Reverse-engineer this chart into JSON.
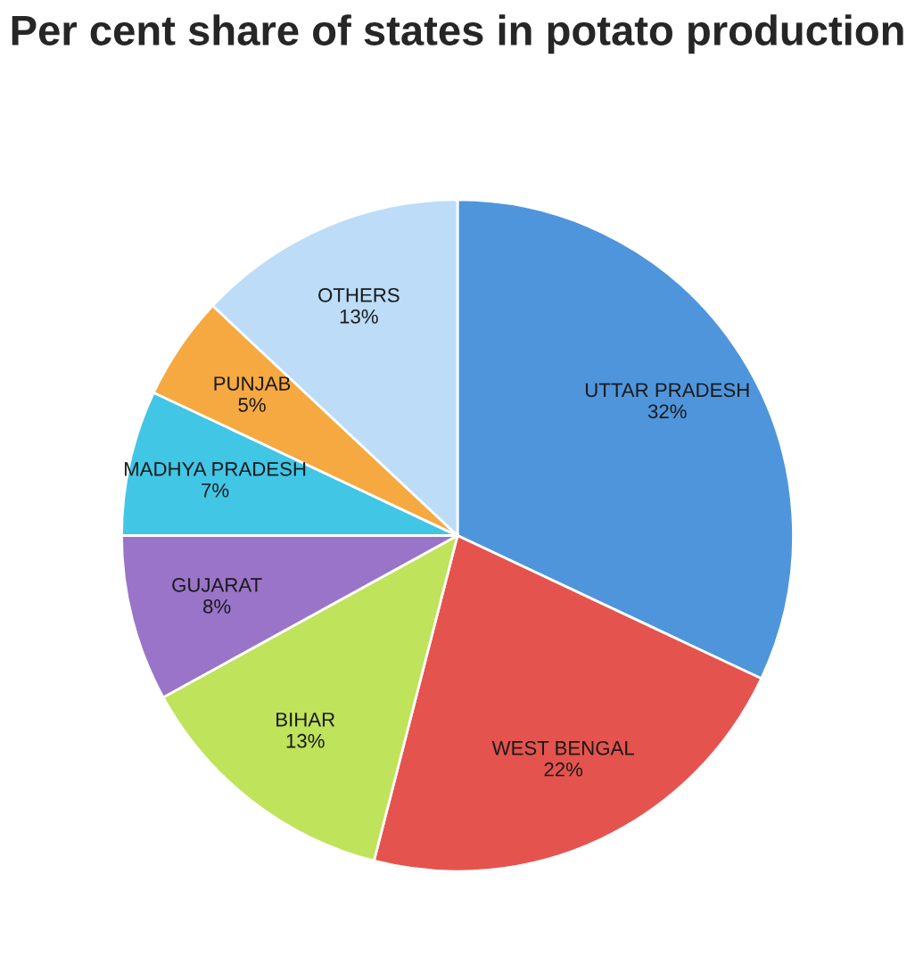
{
  "chart_data": {
    "type": "pie",
    "title": "Per cent share of states in potato production",
    "categories": [
      "UTTAR PRADESH",
      "WEST BENGAL",
      "BIHAR",
      "GUJARAT",
      "MADHYA PRADESH",
      "PUNJAB",
      "OTHERS"
    ],
    "values": [
      32,
      22,
      13,
      8,
      7,
      5,
      13
    ],
    "value_labels": [
      "32%",
      "22%",
      "13%",
      "8%",
      "7%",
      "5%",
      "13%"
    ],
    "colors": [
      "#4f95dc",
      "#e5534f",
      "#bfe35a",
      "#9a74c8",
      "#41c6e6",
      "#f5a940",
      "#bcdcf7"
    ],
    "legend": false
  }
}
